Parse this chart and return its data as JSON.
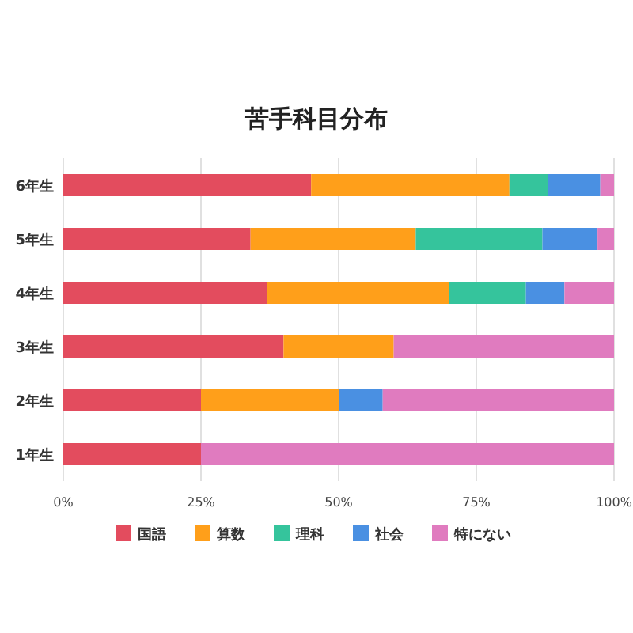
{
  "chart_data": {
    "type": "bar",
    "title": "苦手科目分布",
    "orientation": "horizontal",
    "stacked": true,
    "categories": [
      "6年生",
      "5年生",
      "4年生",
      "3年生",
      "2年生",
      "1年生"
    ],
    "series": [
      {
        "name": "国語",
        "color": "#e34c5e",
        "values": [
          45,
          34,
          37,
          40,
          25,
          25
        ]
      },
      {
        "name": "算数",
        "color": "#ff9f1a",
        "values": [
          36,
          30,
          33,
          20,
          25,
          0
        ]
      },
      {
        "name": "理科",
        "color": "#35c49c",
        "values": [
          7,
          23,
          14,
          0,
          0,
          0
        ]
      },
      {
        "name": "社会",
        "color": "#4a90e2",
        "values": [
          9.5,
          10,
          7,
          0,
          8,
          0
        ]
      },
      {
        "name": "特にない",
        "color": "#e07bbf",
        "values": [
          2.5,
          3,
          9,
          40,
          42,
          75
        ]
      }
    ],
    "xlim": [
      0,
      100
    ],
    "xticks": [
      {
        "value": 0,
        "label": "0%"
      },
      {
        "value": 25,
        "label": "25%"
      },
      {
        "value": 50,
        "label": "50%"
      },
      {
        "value": 75,
        "label": "75%"
      },
      {
        "value": 100,
        "label": "100%"
      }
    ],
    "grid": "x",
    "legend": "bottom"
  }
}
